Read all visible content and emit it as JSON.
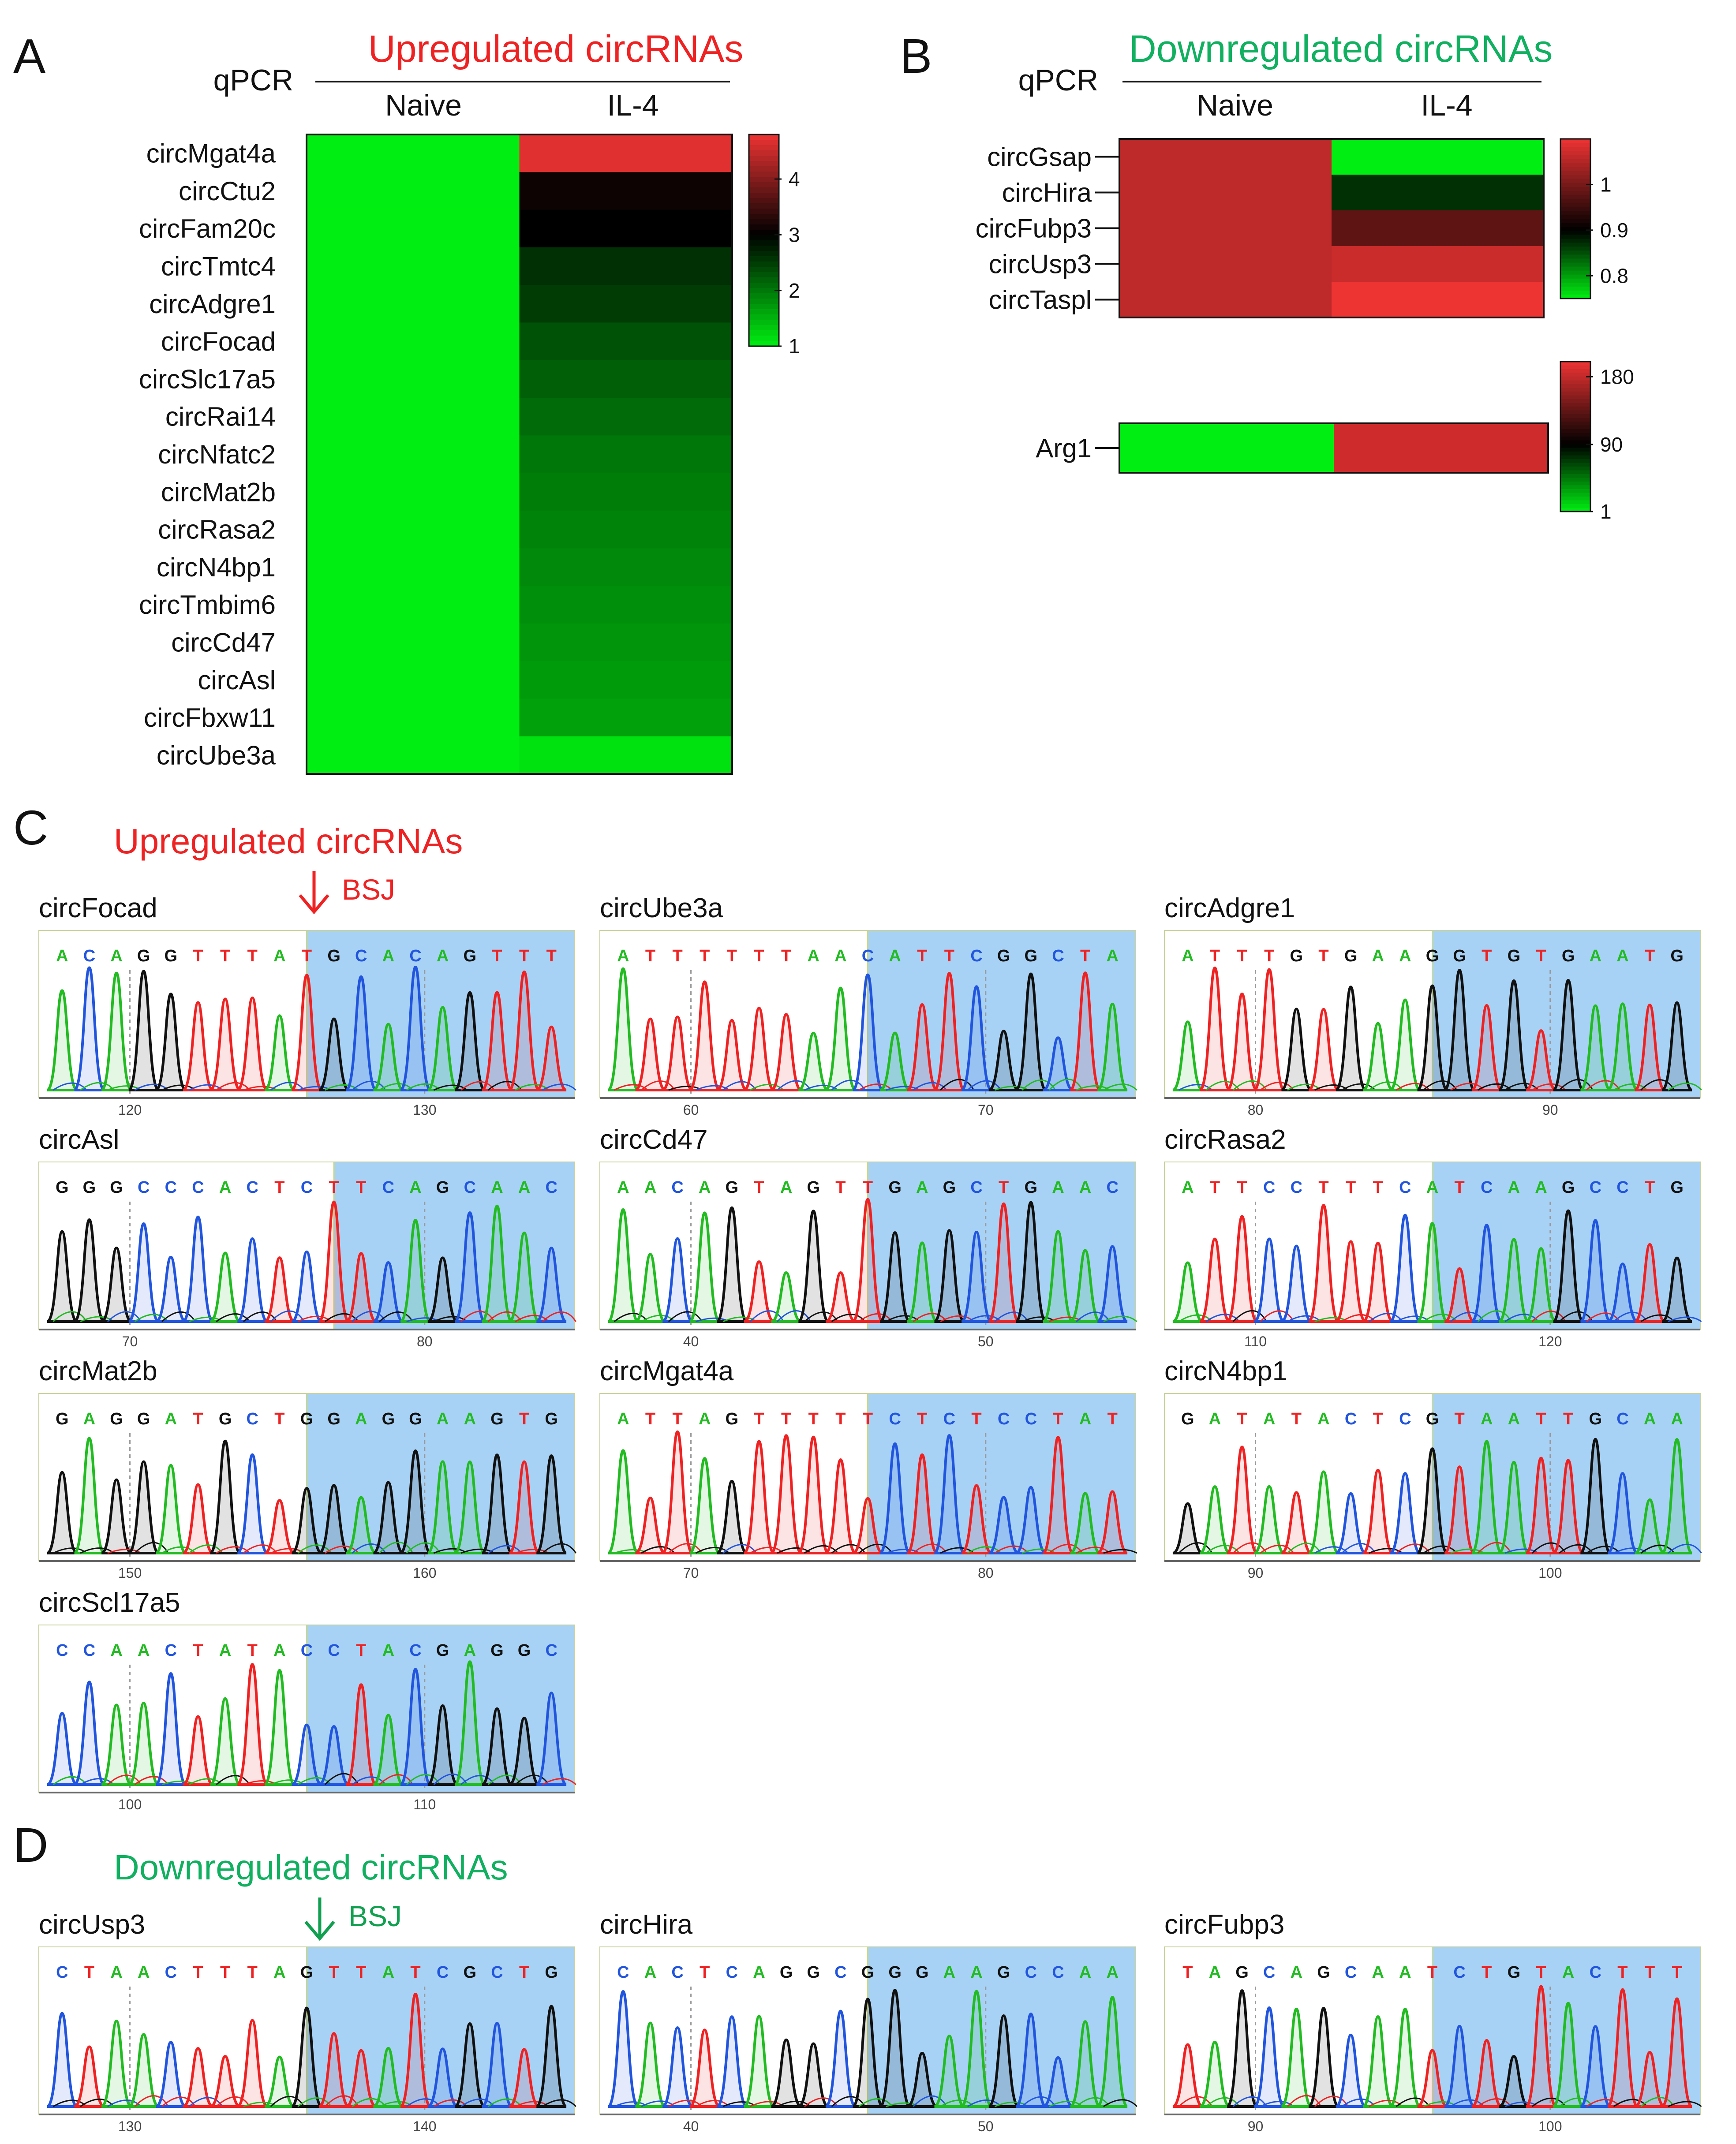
{
  "panels": {
    "A": {
      "letter": "A",
      "title": "Upregulated circRNAs",
      "method": "qPCR",
      "columns": [
        "Naive",
        "IL-4"
      ]
    },
    "B": {
      "letter": "B",
      "title": "Downregulated circRNAs",
      "method": "qPCR",
      "columns": [
        "Naive",
        "IL-4"
      ]
    },
    "C": {
      "letter": "C",
      "title": "Upregulated circRNAs",
      "marker_label": "BSJ"
    },
    "D": {
      "letter": "D",
      "title": "Downregulated circRNAs",
      "marker_label": "BSJ"
    }
  },
  "colors": {
    "up_title": "#ee2222",
    "down_title": "#10b060",
    "heat_low": "#00ee11",
    "heat_mid": "#000000",
    "heat_high": "#ee3333",
    "highlight": "#a8d2f5",
    "base_A": "#22bb22",
    "base_C": "#2255dd",
    "base_G": "#111111",
    "base_T": "#ee2222"
  },
  "chart_data": [
    {
      "id": "heatmap-up",
      "type": "heatmap",
      "title": "Upregulated circRNAs",
      "ylabel": "qPCR",
      "columns": [
        "Naive",
        "IL-4"
      ],
      "rows": [
        "circMgat4a",
        "circCtu2",
        "circFam20c",
        "circTmtc4",
        "circAdgre1",
        "circFocad",
        "circSlc17a5",
        "circRai14",
        "circNfatc2",
        "circMat2b",
        "circRasa2",
        "circN4bp1",
        "circTmbim6",
        "circCd47",
        "circAsl",
        "circFbxw11",
        "circUbe3a"
      ],
      "values": [
        [
          1,
          4.7
        ],
        [
          1,
          3.1
        ],
        [
          1,
          3.0
        ],
        [
          1,
          2.6
        ],
        [
          1,
          2.5
        ],
        [
          1,
          2.3
        ],
        [
          1,
          2.2
        ],
        [
          1,
          2.1
        ],
        [
          1,
          2.0
        ],
        [
          1,
          1.95
        ],
        [
          1,
          1.9
        ],
        [
          1,
          1.85
        ],
        [
          1,
          1.8
        ],
        [
          1,
          1.75
        ],
        [
          1,
          1.7
        ],
        [
          1,
          1.65
        ],
        [
          1,
          1.1
        ]
      ],
      "scale": {
        "min": 1,
        "mid": 3,
        "max": 4.8,
        "ticks": [
          1,
          2,
          3,
          4
        ]
      }
    },
    {
      "id": "heatmap-down",
      "type": "heatmap",
      "title": "Downregulated circRNAs",
      "ylabel": "qPCR",
      "columns": [
        "Naive",
        "IL-4"
      ],
      "rows": [
        "circGsap",
        "circHira",
        "circFubp3",
        "circUsp3",
        "circTaspl"
      ],
      "values": [
        [
          1.06,
          0.75
        ],
        [
          1.06,
          0.87
        ],
        [
          1.06,
          0.98
        ],
        [
          1.06,
          1.07
        ],
        [
          1.06,
          1.1
        ]
      ],
      "scale": {
        "min": 0.75,
        "mid": 0.9,
        "max": 1.1,
        "ticks": [
          0.8,
          0.9,
          1.0
        ]
      }
    },
    {
      "id": "heatmap-arg1",
      "type": "heatmap",
      "columns": [
        "Naive",
        "IL-4"
      ],
      "rows": [
        "Arg1"
      ],
      "values": [
        [
          1,
          185
        ]
      ],
      "scale": {
        "min": 1,
        "mid": 90,
        "max": 200,
        "ticks": [
          1,
          90,
          180
        ]
      }
    }
  ],
  "traces": [
    {
      "name": "circFocad",
      "seq": "ACAGGTTTATGCACAGTTT",
      "junction": 10,
      "ticks": [
        "120",
        "130"
      ]
    },
    {
      "name": "circUbe3a",
      "seq": "ATTTTTTAACATTCGGCTA",
      "junction": 10,
      "ticks": [
        "60",
        "70"
      ]
    },
    {
      "name": "circAdgre1",
      "seq": "ATTTGTGAAGGTGTGAATG",
      "junction": 10,
      "ticks": [
        "80",
        "90"
      ]
    },
    {
      "name": "circAsl",
      "seq": "GGGCCCACTCTTCAGCAAC",
      "junction": 11,
      "ticks": [
        "70",
        "80"
      ]
    },
    {
      "name": "circCd47",
      "seq": "AACAGTAGTTGAGCTGAAC",
      "junction": 10,
      "ticks": [
        "40",
        "50"
      ]
    },
    {
      "name": "circRasa2",
      "seq": "ATTCCTTTCATCAAGCCTG",
      "junction": 10,
      "ticks": [
        "110",
        "120"
      ]
    },
    {
      "name": "circMat2b",
      "seq": "GAGGATGCTGGAGGAAGTG",
      "junction": 10,
      "ticks": [
        "150",
        "160"
      ]
    },
    {
      "name": "circMgat4a",
      "seq": "ATTAGTTTTTCTCTCCTAT",
      "junction": 10,
      "ticks": [
        "70",
        "80"
      ]
    },
    {
      "name": "circN4bp1",
      "seq": "GATATACTCGTAATTGCAA",
      "junction": 10,
      "ticks": [
        "90",
        "100"
      ]
    },
    {
      "name": "circScl17a5",
      "seq": "CCAACTATACCTACGAGGC",
      "junction": 10,
      "ticks": [
        "100",
        "110"
      ]
    },
    {
      "name": "circUsp3",
      "seq": "CTAACTTTAGTTATCGCTG",
      "junction": 10,
      "ticks": [
        "130",
        "140"
      ]
    },
    {
      "name": "circHira",
      "seq": "CACTCAGGCGGGAAGCCAA",
      "junction": 10,
      "ticks": [
        "40",
        "50"
      ]
    },
    {
      "name": "circFubp3",
      "seq": "TAGCAGCAATCTGTACTTT",
      "junction": 10,
      "ticks": [
        "90",
        "100"
      ]
    }
  ]
}
